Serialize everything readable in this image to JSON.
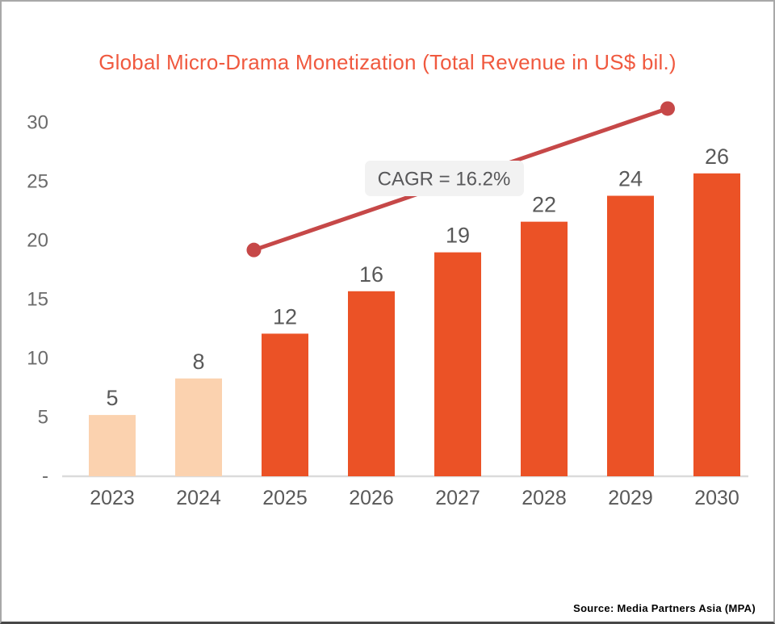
{
  "title": "Global Micro-Drama Monetization (Total Revenue in US$ bil.)",
  "source": "Source: Media Partners Asia (MPA)",
  "colors": {
    "title": "#F0593F",
    "bar_light": "#FBD2AF",
    "bar_dark": "#EB5226",
    "trend_line": "#C64848",
    "label_text": "#595959",
    "tick_text": "#6b6b6b",
    "axis_line": "#DBDBDB",
    "annotation_bg": "#F2F2F2",
    "annotation_text": "#58585A"
  },
  "chart_data": {
    "type": "bar",
    "title": "Global Micro-Drama Monetization (Total Revenue in US$ bil.)",
    "categories": [
      "2023",
      "2024",
      "2025",
      "2026",
      "2027",
      "2028",
      "2029",
      "2030"
    ],
    "values": [
      5,
      8,
      12,
      16,
      19,
      22,
      24,
      26
    ],
    "bar_values_precise": [
      5.2,
      8.3,
      12.1,
      15.7,
      19.0,
      21.6,
      23.8,
      25.7
    ],
    "highlight_from_index": 2,
    "xlabel": "",
    "ylabel": "",
    "ylim": [
      0,
      32
    ],
    "grid": false,
    "legend": false,
    "y_ticks": [
      {
        "label": "30",
        "value": 30
      },
      {
        "label": "25",
        "value": 25
      },
      {
        "label": "20",
        "value": 20
      },
      {
        "label": "15",
        "value": 15
      },
      {
        "label": "10",
        "value": 10
      },
      {
        "label": "5",
        "value": 5
      },
      {
        "label": "-",
        "value": 0
      }
    ],
    "annotation": {
      "text": "CAGR = 16.2%"
    },
    "trend_line": {
      "start_category_pos": 1.64,
      "start_value": 19.2,
      "end_category_pos": 6.43,
      "end_value": 31.2
    }
  }
}
